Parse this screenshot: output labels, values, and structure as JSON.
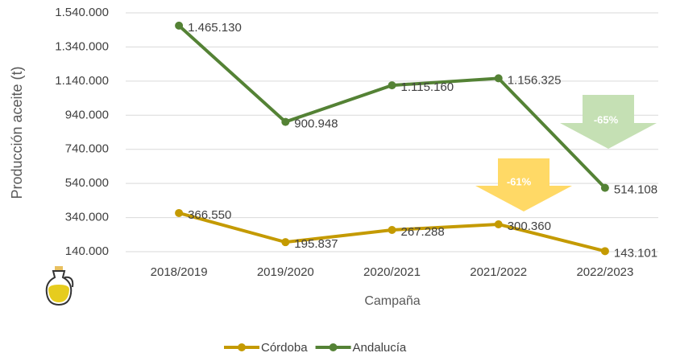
{
  "chart_data": {
    "type": "line",
    "categories": [
      "2018/2019",
      "2019/2020",
      "2020/2021",
      "2021/2022",
      "2022/2023"
    ],
    "series": [
      {
        "name": "Córdoba",
        "color": "#c49a00",
        "values": [
          366550,
          195837,
          267288,
          300360,
          143101
        ],
        "value_labels": [
          "366.550",
          "195.837",
          "267.288",
          "300.360",
          "143.101"
        ]
      },
      {
        "name": "Andalucía",
        "color": "#548235",
        "values": [
          1465130,
          900948,
          1115160,
          1156325,
          514108
        ],
        "value_labels": [
          "1.465.130",
          "900.948",
          "1.115.160",
          "1.156.325",
          "514.108"
        ]
      }
    ],
    "ylabel": "Producción aceite (t)",
    "xlabel": "Campaña",
    "ylim": [
      140000,
      1540000
    ],
    "yticks": [
      {
        "value": 140000,
        "label": "140.000"
      },
      {
        "value": 340000,
        "label": "340.000"
      },
      {
        "value": 540000,
        "label": "540.000"
      },
      {
        "value": 740000,
        "label": "740.000"
      },
      {
        "value": 940000,
        "label": "940.000"
      },
      {
        "value": 1140000,
        "label": "1.140.000"
      },
      {
        "value": 1340000,
        "label": "1.340.000"
      },
      {
        "value": 1540000,
        "label": "1.540.000"
      }
    ],
    "grid": true,
    "legend": "bottom",
    "annotations": [
      {
        "text": "-65%",
        "color": "#c5e0b4"
      },
      {
        "text": "-61%",
        "color": "#ffd966"
      }
    ]
  }
}
